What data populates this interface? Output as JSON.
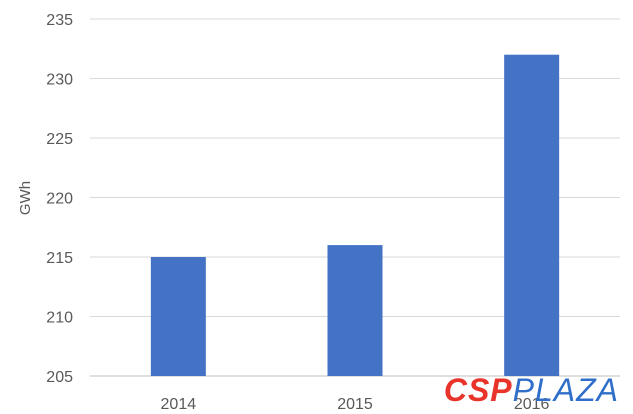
{
  "chart_data": {
    "type": "bar",
    "title": "",
    "xlabel": "",
    "ylabel": "GWh",
    "categories": [
      "2014",
      "2015",
      "2016"
    ],
    "values": [
      215,
      216,
      232
    ],
    "ylim": [
      205,
      235
    ],
    "yticks": [
      205,
      210,
      215,
      220,
      225,
      230,
      235
    ],
    "grid": true,
    "legend": "none",
    "bar_color": "#4472c4"
  },
  "watermark": {
    "part1": "CSP",
    "part2": "PLAZA"
  }
}
